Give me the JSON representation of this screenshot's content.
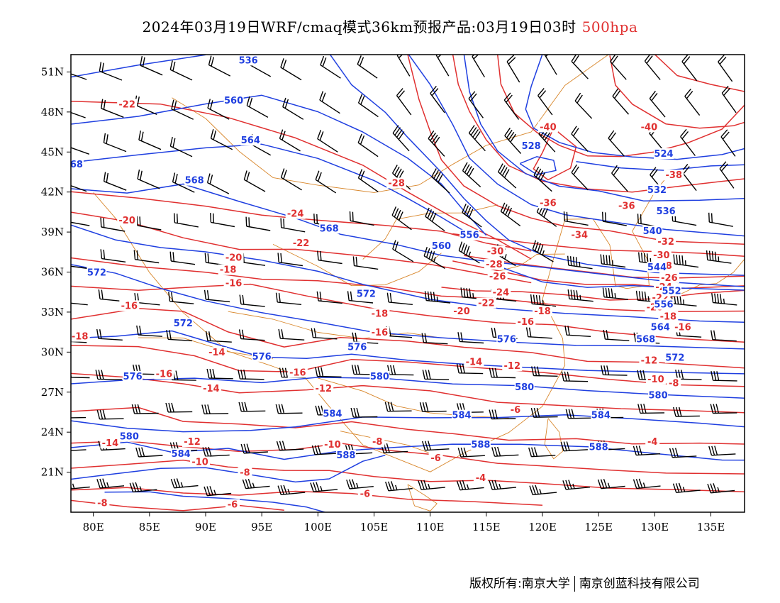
{
  "title": {
    "main": "2024年03月19日WRF/cmaq模式36km预报产品:03月19日03时",
    "level": "500hpa"
  },
  "axes": {
    "lon_labels": [
      "80E",
      "85E",
      "90E",
      "95E",
      "100E",
      "105E",
      "110E",
      "115E",
      "120E",
      "125E",
      "130E",
      "135E"
    ],
    "lat_labels": [
      "51N",
      "48N",
      "45N",
      "42N",
      "39N",
      "36N",
      "33N",
      "30N",
      "27N",
      "24N",
      "21N"
    ]
  },
  "colors": {
    "height_contour": "#1f3fe0",
    "temperature_contour": "#e03030",
    "boundary": "#d8862a",
    "wind_barb": "#000000"
  },
  "contour_labels": {
    "height": [
      {
        "text": "536",
        "lon": 93.8,
        "lat": 51.8
      },
      {
        "text": "560",
        "lon": 92.5,
        "lat": 48.8
      },
      {
        "text": "564",
        "lon": 94,
        "lat": 45.8
      },
      {
        "text": "68",
        "lon": 78.5,
        "lat": 44.0
      },
      {
        "text": "568",
        "lon": 89,
        "lat": 42.8
      },
      {
        "text": "568",
        "lon": 101,
        "lat": 39.2
      },
      {
        "text": "556",
        "lon": 113.5,
        "lat": 38.7
      },
      {
        "text": "560",
        "lon": 111,
        "lat": 37.9
      },
      {
        "text": "572",
        "lon": 80.3,
        "lat": 35.9
      },
      {
        "text": "572",
        "lon": 104.3,
        "lat": 34.3
      },
      {
        "text": "572",
        "lon": 88,
        "lat": 32.1
      },
      {
        "text": "576",
        "lon": 95,
        "lat": 29.6
      },
      {
        "text": "576",
        "lon": 103.5,
        "lat": 30.3
      },
      {
        "text": "576",
        "lon": 83.5,
        "lat": 28.1
      },
      {
        "text": "580",
        "lon": 105.5,
        "lat": 28.1
      },
      {
        "text": "580",
        "lon": 118.4,
        "lat": 27.3
      },
      {
        "text": "584",
        "lon": 101.3,
        "lat": 25.3
      },
      {
        "text": "584",
        "lon": 112.8,
        "lat": 25.2
      },
      {
        "text": "584",
        "lon": 125.2,
        "lat": 25.2
      },
      {
        "text": "580",
        "lon": 83.2,
        "lat": 23.6
      },
      {
        "text": "584",
        "lon": 87.8,
        "lat": 22.3
      },
      {
        "text": "588",
        "lon": 102.5,
        "lat": 22.2
      },
      {
        "text": "588",
        "lon": 114.5,
        "lat": 23.0
      },
      {
        "text": "588",
        "lon": 125.0,
        "lat": 22.8
      },
      {
        "text": "528",
        "lon": 119,
        "lat": 45.4
      },
      {
        "text": "524",
        "lon": 130.8,
        "lat": 44.8
      },
      {
        "text": "532",
        "lon": 130.2,
        "lat": 42.1
      },
      {
        "text": "536",
        "lon": 131.0,
        "lat": 40.5
      },
      {
        "text": "540",
        "lon": 129.8,
        "lat": 39.0
      },
      {
        "text": "544",
        "lon": 130.2,
        "lat": 36.3
      },
      {
        "text": "552",
        "lon": 131.5,
        "lat": 34.5
      },
      {
        "text": "556",
        "lon": 130.8,
        "lat": 33.5
      },
      {
        "text": "564",
        "lon": 130.5,
        "lat": 31.8
      },
      {
        "text": "568",
        "lon": 129.2,
        "lat": 30.9
      },
      {
        "text": "572",
        "lon": 131.8,
        "lat": 29.5
      },
      {
        "text": "576",
        "lon": 116.8,
        "lat": 30.9
      },
      {
        "text": "580",
        "lon": 130.3,
        "lat": 26.7
      }
    ],
    "temperature": [
      {
        "text": "-22",
        "lon": 83,
        "lat": 48.5
      },
      {
        "text": "-20",
        "lon": 83,
        "lat": 39.8
      },
      {
        "text": "-24",
        "lon": 98,
        "lat": 40.3
      },
      {
        "text": "-22",
        "lon": 98.5,
        "lat": 38.1
      },
      {
        "text": "-28",
        "lon": 107,
        "lat": 42.6
      },
      {
        "text": "-20",
        "lon": 92.5,
        "lat": 37.0
      },
      {
        "text": "-18",
        "lon": 92,
        "lat": 36.1
      },
      {
        "text": "-16",
        "lon": 92.5,
        "lat": 35.1
      },
      {
        "text": "-16",
        "lon": 83.2,
        "lat": 33.4
      },
      {
        "text": "-18",
        "lon": 78.8,
        "lat": 31.1
      },
      {
        "text": "-18",
        "lon": 105.5,
        "lat": 32.8
      },
      {
        "text": "-16",
        "lon": 105.5,
        "lat": 31.4
      },
      {
        "text": "-14",
        "lon": 91,
        "lat": 29.9
      },
      {
        "text": "-16",
        "lon": 98.2,
        "lat": 28.4
      },
      {
        "text": "-16",
        "lon": 86.3,
        "lat": 28.3
      },
      {
        "text": "-14",
        "lon": 90.5,
        "lat": 27.2
      },
      {
        "text": "-12",
        "lon": 100.5,
        "lat": 27.2
      },
      {
        "text": "-14",
        "lon": 113.9,
        "lat": 29.2
      },
      {
        "text": "-12",
        "lon": 117.3,
        "lat": 28.9
      },
      {
        "text": "-10",
        "lon": 101.3,
        "lat": 23.0
      },
      {
        "text": "-8",
        "lon": 105.3,
        "lat": 23.2
      },
      {
        "text": "-12",
        "lon": 88.8,
        "lat": 23.2
      },
      {
        "text": "-14",
        "lon": 81.5,
        "lat": 23.1
      },
      {
        "text": "-10",
        "lon": 89.5,
        "lat": 21.7
      },
      {
        "text": "-8",
        "lon": 93.5,
        "lat": 20.9
      },
      {
        "text": "-6",
        "lon": 104.2,
        "lat": 19.3
      },
      {
        "text": "-6",
        "lon": 92.4,
        "lat": 18.5
      },
      {
        "text": "-8",
        "lon": 80.8,
        "lat": 18.6
      },
      {
        "text": "-6",
        "lon": 117.6,
        "lat": 25.6
      },
      {
        "text": "-6",
        "lon": 110.5,
        "lat": 22.0
      },
      {
        "text": "-4",
        "lon": 114.5,
        "lat": 20.5
      },
      {
        "text": "-4",
        "lon": 129.8,
        "lat": 23.2
      },
      {
        "text": "-20",
        "lon": 112.8,
        "lat": 33.0
      },
      {
        "text": "-22",
        "lon": 115,
        "lat": 33.6
      },
      {
        "text": "-18",
        "lon": 120,
        "lat": 33.0
      },
      {
        "text": "-16",
        "lon": 118.5,
        "lat": 32.2
      },
      {
        "text": "-24",
        "lon": 116.3,
        "lat": 34.4
      },
      {
        "text": "-26",
        "lon": 116,
        "lat": 35.6
      },
      {
        "text": "-28",
        "lon": 115.7,
        "lat": 36.5
      },
      {
        "text": "-30",
        "lon": 115.8,
        "lat": 37.5
      },
      {
        "text": "-34",
        "lon": 123.3,
        "lat": 38.7
      },
      {
        "text": "-36",
        "lon": 120.5,
        "lat": 41.1
      },
      {
        "text": "-36",
        "lon": 127.5,
        "lat": 40.9
      },
      {
        "text": "-38",
        "lon": 131.7,
        "lat": 43.2
      },
      {
        "text": "-40",
        "lon": 120.5,
        "lat": 46.8
      },
      {
        "text": "-40",
        "lon": 129.5,
        "lat": 46.8
      },
      {
        "text": "-32",
        "lon": 131,
        "lat": 38.2
      },
      {
        "text": "-30",
        "lon": 130.6,
        "lat": 37.2
      },
      {
        "text": "-28",
        "lon": 130.8,
        "lat": 36.4
      },
      {
        "text": "-26",
        "lon": 131.3,
        "lat": 35.5
      },
      {
        "text": "-24",
        "lon": 130.8,
        "lat": 34.8
      },
      {
        "text": "-22",
        "lon": 130.5,
        "lat": 34.0
      },
      {
        "text": "-20",
        "lon": 130,
        "lat": 33.3
      },
      {
        "text": "-18",
        "lon": 131.2,
        "lat": 32.6
      },
      {
        "text": "-16",
        "lon": 132.5,
        "lat": 31.8
      },
      {
        "text": "-12",
        "lon": 129.5,
        "lat": 29.3
      },
      {
        "text": "-10",
        "lon": 130.1,
        "lat": 27.9
      },
      {
        "text": "-8",
        "lon": 131.7,
        "lat": 27.6
      }
    ]
  },
  "footer": {
    "left": "版权所有:南京大学",
    "right": "南京创蓝科技有限公司"
  }
}
